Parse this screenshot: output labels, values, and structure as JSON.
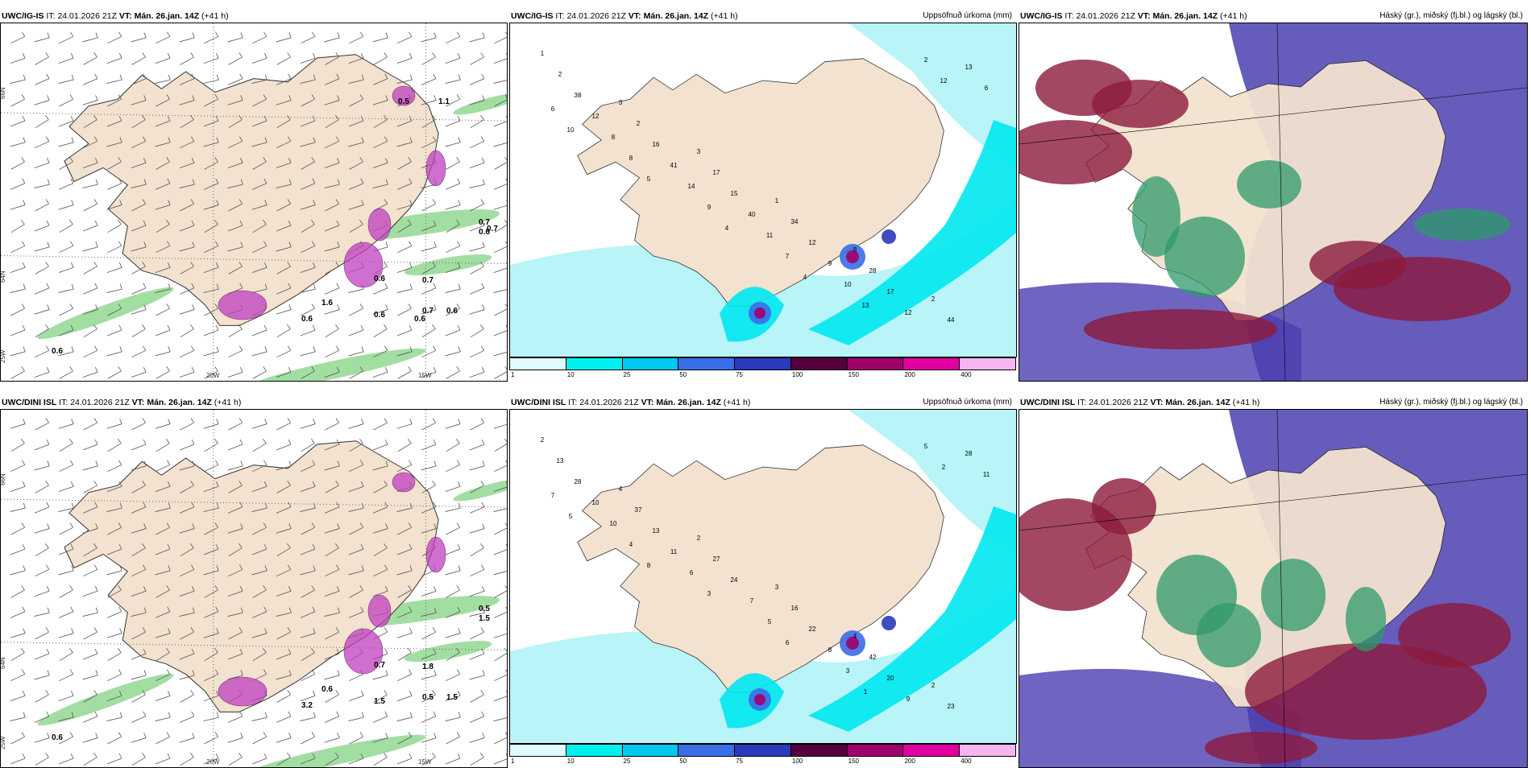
{
  "rows": [
    {
      "model": "UWC/IG-IS",
      "panels": [
        {
          "model": "UWC/IG-IS",
          "it_label": "IT:",
          "it": "24.01.2026 21Z",
          "vt_label": "VT:",
          "vt": "Mán. 26.jan. 14Z",
          "lead": "(+41 h)",
          "right": ""
        },
        {
          "model": "UWC/IG-IS",
          "it_label": "IT:",
          "it": "24.01.2026 21Z",
          "vt_label": "VT:",
          "vt": "Mán. 26.jan. 14Z",
          "lead": "(+41 h)",
          "right": "Uppsöfnuð úrkoma (mm)"
        },
        {
          "model": "UWC/IG-IS",
          "it_label": "IT:",
          "it": "24.01.2026 21Z",
          "vt_label": "VT:",
          "vt": "Mán. 26.jan. 14Z",
          "lead": "(+41 h)",
          "right": "Háský (gr.), miðský (fj.bl.) og lágský (bl.)"
        }
      ],
      "wind_values": [
        "0.6",
        "0.6",
        "0.7",
        "0.6",
        "0.6",
        "0.7",
        "1.6",
        "0.6",
        "0.7",
        "0.6",
        "0.5",
        "0.7",
        "0.6",
        "1.1"
      ],
      "precip_values": [
        "1",
        "3",
        "3",
        "1",
        "8",
        "2",
        "2",
        "2",
        "17",
        "34",
        "28",
        "44",
        "38",
        "16",
        "15",
        "12",
        "17",
        "13",
        "12",
        "41",
        "40",
        "9",
        "12",
        "6",
        "8",
        "14",
        "11",
        "10",
        "2",
        "6",
        "8",
        "9",
        "7",
        "13",
        "12",
        "10",
        "5",
        "4",
        "4"
      ]
    },
    {
      "model": "UWC/DINI ISL",
      "panels": [
        {
          "model": "UWC/DINI ISL",
          "it_label": "IT:",
          "it": "24.01.2026 21Z",
          "vt_label": "VT:",
          "vt": "Mán. 26.jan. 14Z",
          "lead": "(+41 h)",
          "right": ""
        },
        {
          "model": "UWC/DINI ISL",
          "it_label": "IT:",
          "it": "24.01.2026 21Z",
          "vt_label": "VT:",
          "vt": "Mán. 26.jan. 14Z",
          "lead": "(+41 h)",
          "right": "Uppsöfnuð úrkoma (mm)"
        },
        {
          "model": "UWC/DINI ISL",
          "it_label": "IT:",
          "it": "24.01.2026 21Z",
          "vt_label": "VT:",
          "vt": "Mán. 26.jan. 14Z",
          "lead": "(+41 h)",
          "right": "Háský (gr.), miðský (fj.bl.) og lágský (bl.)"
        }
      ],
      "wind_values": [
        "0.6",
        "3.2",
        "0.5",
        "1.5",
        "0.7",
        "1.8",
        "0.6",
        "1.5",
        "0.5",
        "1.5"
      ],
      "precip_values": [
        "2",
        "4",
        "2",
        "3",
        "4",
        "2",
        "13",
        "37",
        "27",
        "16",
        "42",
        "23",
        "28",
        "13",
        "24",
        "22",
        "20",
        "28",
        "10",
        "11",
        "7",
        "8",
        "9",
        "11",
        "10",
        "6",
        "5",
        "3",
        "5",
        "7",
        "4",
        "3",
        "6",
        "1",
        "2",
        "5",
        "8"
      ]
    }
  ],
  "axes": {
    "lat_top": "66N",
    "lat_bottom": "64N",
    "lon_left": "25W",
    "lon_mid": "20W",
    "lon_right": "15W"
  },
  "colorbar": {
    "labels": [
      "1",
      "10",
      "25",
      "50",
      "75",
      "100",
      "150",
      "200",
      "400"
    ],
    "colors": [
      "#e0fbff",
      "#00f0f0",
      "#00c8ee",
      "#3a6ee8",
      "#2a3ab8",
      "#560040",
      "#a0006c",
      "#e000a0",
      "#f5b5ef"
    ]
  },
  "colors": {
    "land": "#f3e2cf",
    "sea": "#ffffff",
    "precip_light": "#b8f4f8",
    "precip_mid": "#00e8f0",
    "precip_high": "#1a9ee0",
    "precip_core": "#a0006c",
    "cloud_high": "#8c1a3c",
    "cloud_mid": "#4b3fb0",
    "cloud_low": "#2e9a6a",
    "snow": "#c040c0",
    "rain_green": "#7ad07a"
  }
}
